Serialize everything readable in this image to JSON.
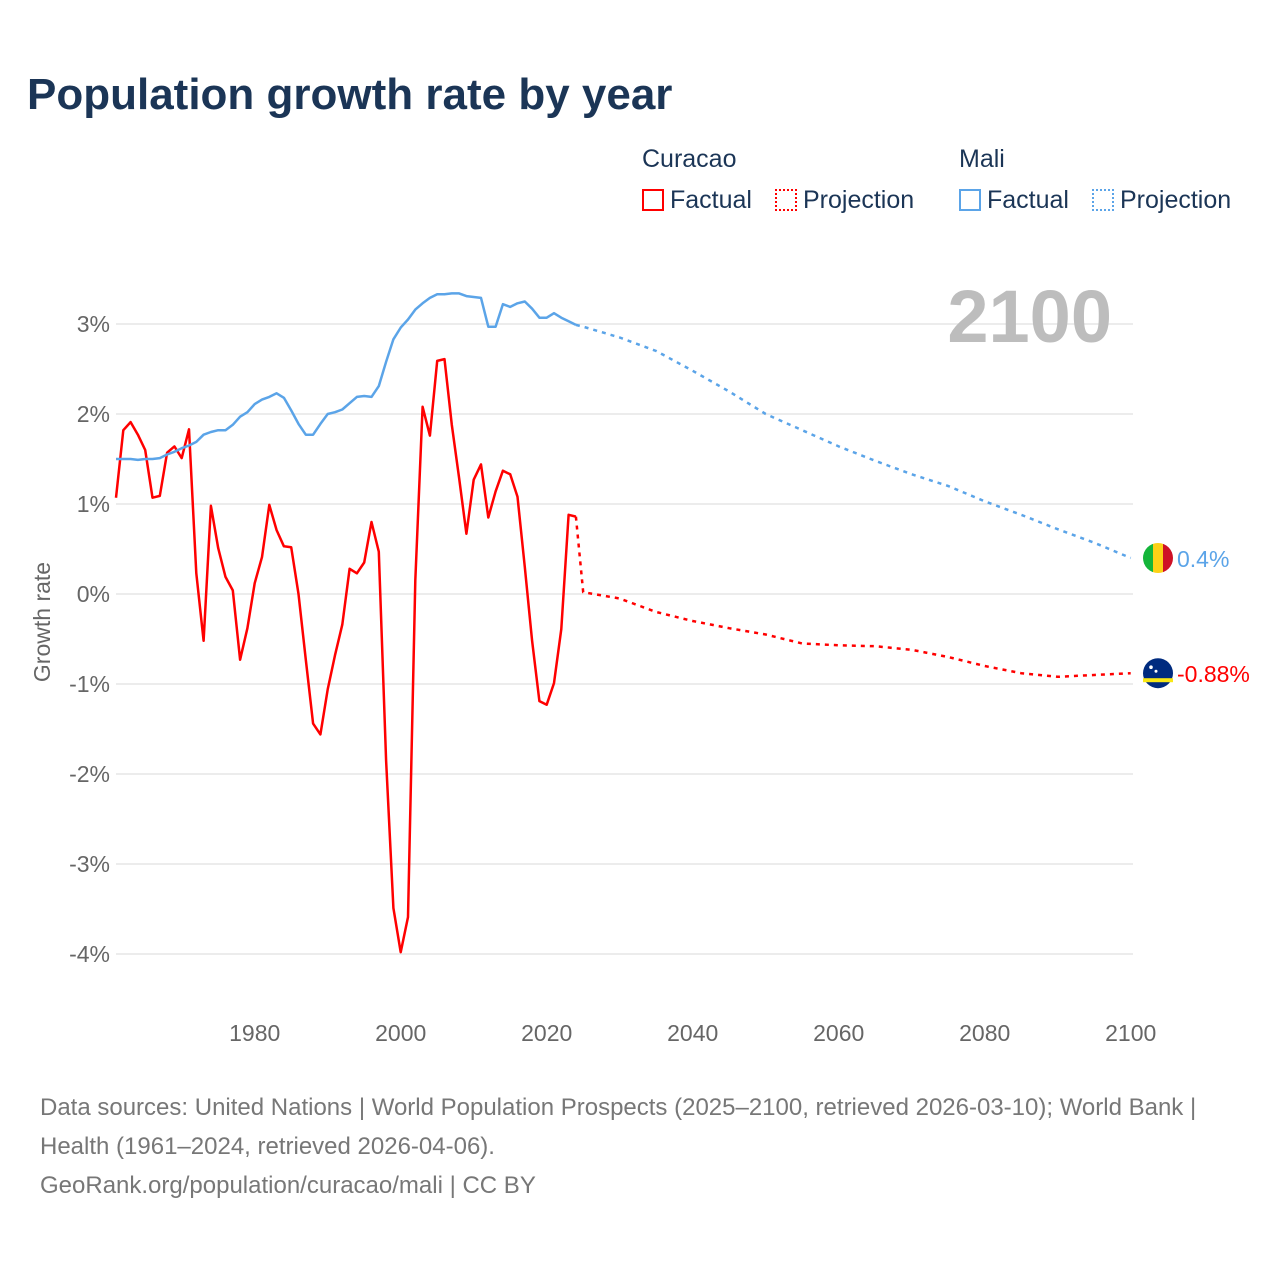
{
  "title": "Population growth rate by year",
  "legend": {
    "curacao": "Curacao",
    "mali": "Mali",
    "factual": "Factual",
    "projection": "Projection"
  },
  "colors": {
    "curacao": "#ff0000",
    "mali": "#5ba4e8"
  },
  "footer": {
    "sources": "Data sources: United Nations | World Population Prospects (2025–2100, retrieved 2026-03-10); World Bank | Health (1961–2024, retrieved 2026-04-06).",
    "credit": "GeoRank.org/population/curacao/mali | CC BY"
  },
  "chart_data": {
    "type": "line",
    "title": "Population growth rate by year",
    "ylabel": "Growth rate",
    "xlabel": "",
    "xlim": [
      1961,
      2100
    ],
    "ylim": [
      -4.4,
      3.6
    ],
    "xticks": [
      1980,
      2000,
      2020,
      2040,
      2060,
      2080,
      2100
    ],
    "xtick_labels": [
      "1980",
      "2000",
      "2020",
      "2040",
      "2060",
      "2080",
      "2100"
    ],
    "yticks": [
      3,
      2,
      1,
      0,
      -1,
      -2,
      -3,
      -4
    ],
    "ytick_labels": [
      "3%",
      "2%",
      "1%",
      "0%",
      "-1%",
      "-2%",
      "-3%",
      "-4%"
    ],
    "year_label": "2100",
    "series": [
      {
        "name": "Curacao",
        "kind": "factual",
        "start": 1961,
        "values": [
          1.07,
          1.82,
          1.91,
          1.77,
          1.6,
          1.07,
          1.09,
          1.57,
          1.64,
          1.51,
          1.83,
          0.23,
          -0.52,
          0.98,
          0.51,
          0.19,
          0.04,
          -0.73,
          -0.38,
          0.12,
          0.41,
          0.99,
          0.71,
          0.53,
          0.52,
          0.0,
          -0.73,
          -1.44,
          -1.56,
          -1.06,
          -0.68,
          -0.34,
          0.28,
          0.23,
          0.35,
          0.8,
          0.47,
          -1.85,
          -3.49,
          -3.98,
          -3.59,
          0.15,
          2.08,
          1.76,
          2.59,
          2.61,
          1.88,
          1.29,
          0.67,
          1.27,
          1.44,
          0.85,
          1.14,
          1.37,
          1.33,
          1.08,
          0.3,
          -0.52,
          -1.19,
          -1.23,
          -0.99,
          -0.39,
          0.88,
          0.86
        ]
      },
      {
        "name": "Curacao",
        "kind": "projection",
        "x": [
          2024,
          2025,
          2030,
          2035,
          2040,
          2045,
          2050,
          2055,
          2060,
          2065,
          2070,
          2075,
          2080,
          2085,
          2090,
          2095,
          2100
        ],
        "values": [
          0.86,
          0.02,
          -0.05,
          -0.2,
          -0.3,
          -0.38,
          -0.45,
          -0.55,
          -0.57,
          -0.58,
          -0.62,
          -0.7,
          -0.8,
          -0.88,
          -0.92,
          -0.9,
          -0.88
        ]
      },
      {
        "name": "Mali",
        "kind": "factual",
        "start": 1961,
        "values": [
          1.5,
          1.5,
          1.5,
          1.49,
          1.5,
          1.5,
          1.51,
          1.55,
          1.58,
          1.62,
          1.65,
          1.69,
          1.77,
          1.8,
          1.82,
          1.82,
          1.88,
          1.97,
          2.02,
          2.11,
          2.16,
          2.19,
          2.23,
          2.18,
          2.04,
          1.89,
          1.77,
          1.77,
          1.89,
          2.0,
          2.02,
          2.05,
          2.12,
          2.19,
          2.2,
          2.19,
          2.31,
          2.58,
          2.83,
          2.96,
          3.05,
          3.16,
          3.23,
          3.29,
          3.33,
          3.33,
          3.34,
          3.34,
          3.31,
          3.3,
          3.29,
          2.97,
          2.97,
          3.22,
          3.19,
          3.23,
          3.25,
          3.17,
          3.07,
          3.07,
          3.12,
          3.07,
          3.03,
          2.99
        ]
      },
      {
        "name": "Mali",
        "kind": "projection",
        "x": [
          2024,
          2025,
          2030,
          2035,
          2040,
          2045,
          2050,
          2055,
          2060,
          2065,
          2070,
          2075,
          2080,
          2085,
          2090,
          2095,
          2100
        ],
        "values": [
          2.99,
          2.97,
          2.85,
          2.7,
          2.48,
          2.25,
          2.0,
          1.82,
          1.64,
          1.48,
          1.33,
          1.2,
          1.03,
          0.88,
          0.72,
          0.57,
          0.4
        ]
      }
    ],
    "end_labels": {
      "mali": "0.4%",
      "curacao": "-0.88%"
    }
  }
}
